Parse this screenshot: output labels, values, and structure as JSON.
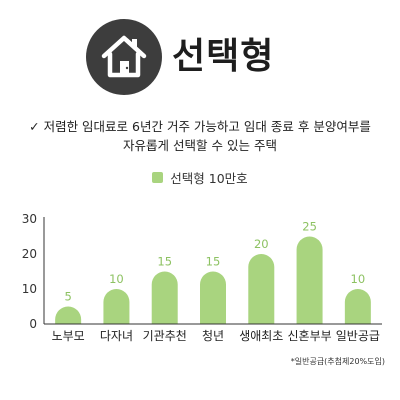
{
  "header": {
    "title": "선택형",
    "icon": "house-icon"
  },
  "description": {
    "line1": "✓ 저렴한 임대료로 6년간 거주 가능하고 임대 종료 후 분양여부를",
    "line2": "자유롭게 선택할 수 있는 주택"
  },
  "colors": {
    "bar": "#a9d47f",
    "value_label": "#8dc262",
    "icon_circle": "#3d3d3d",
    "axis": "#333333"
  },
  "footnote": "*일반공급(추첨제20%도입)",
  "chart_data": {
    "type": "bar",
    "title": "",
    "xlabel": "",
    "ylabel": "",
    "categories": [
      "노부모",
      "다자녀",
      "기관추천",
      "청년",
      "생애최초",
      "신혼부부",
      "일반공급"
    ],
    "series": [
      {
        "name": "선택형 10만호",
        "values": [
          5,
          10,
          15,
          15,
          20,
          25,
          10
        ]
      }
    ],
    "ylim": [
      0,
      30
    ],
    "yticks": [
      0,
      10,
      20,
      30
    ],
    "grid": false,
    "legend": "top-center",
    "data_labels": true
  }
}
